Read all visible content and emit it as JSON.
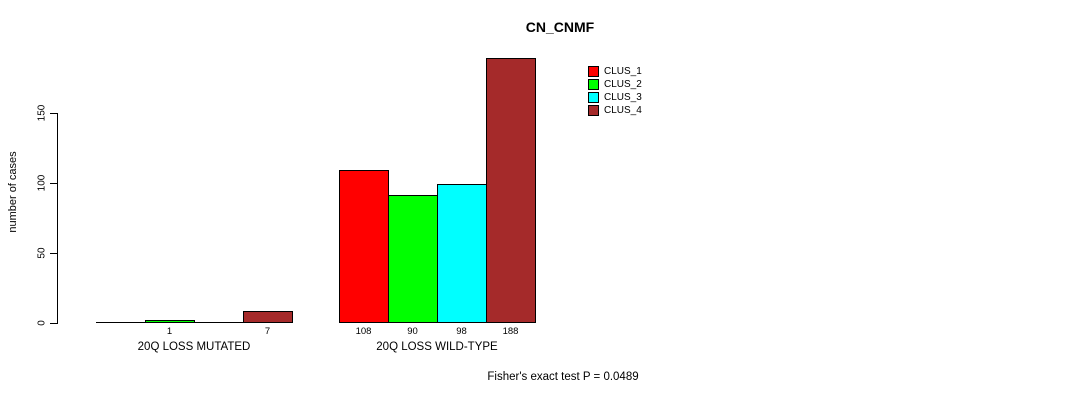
{
  "chart_data": {
    "type": "bar",
    "title": "CN_CNMF",
    "ylabel": "number of cases",
    "xlabel": "",
    "ylim": [
      0,
      190
    ],
    "yticks": [
      0,
      50,
      100,
      150
    ],
    "grid": false,
    "legend_position": "top-right",
    "groups": [
      "20Q LOSS MUTATED",
      "20Q LOSS WILD-TYPE"
    ],
    "series": [
      {
        "name": "CLUS_1",
        "color": "#FF0000",
        "values": [
          0,
          108
        ]
      },
      {
        "name": "CLUS_2",
        "color": "#00FF00",
        "values": [
          1,
          90
        ]
      },
      {
        "name": "CLUS_3",
        "color": "#00FFFF",
        "values": [
          0,
          98
        ]
      },
      {
        "name": "CLUS_4",
        "color": "#A52A2A",
        "values": [
          7,
          188
        ]
      }
    ],
    "bar_labels": [
      [
        "",
        "1",
        "",
        "7"
      ],
      [
        "108",
        "90",
        "98",
        "188"
      ]
    ],
    "footnote": "Fisher's exact test P = 0.0489"
  },
  "colors": {
    "axis": "#000000",
    "background": "#FFFFFF"
  }
}
